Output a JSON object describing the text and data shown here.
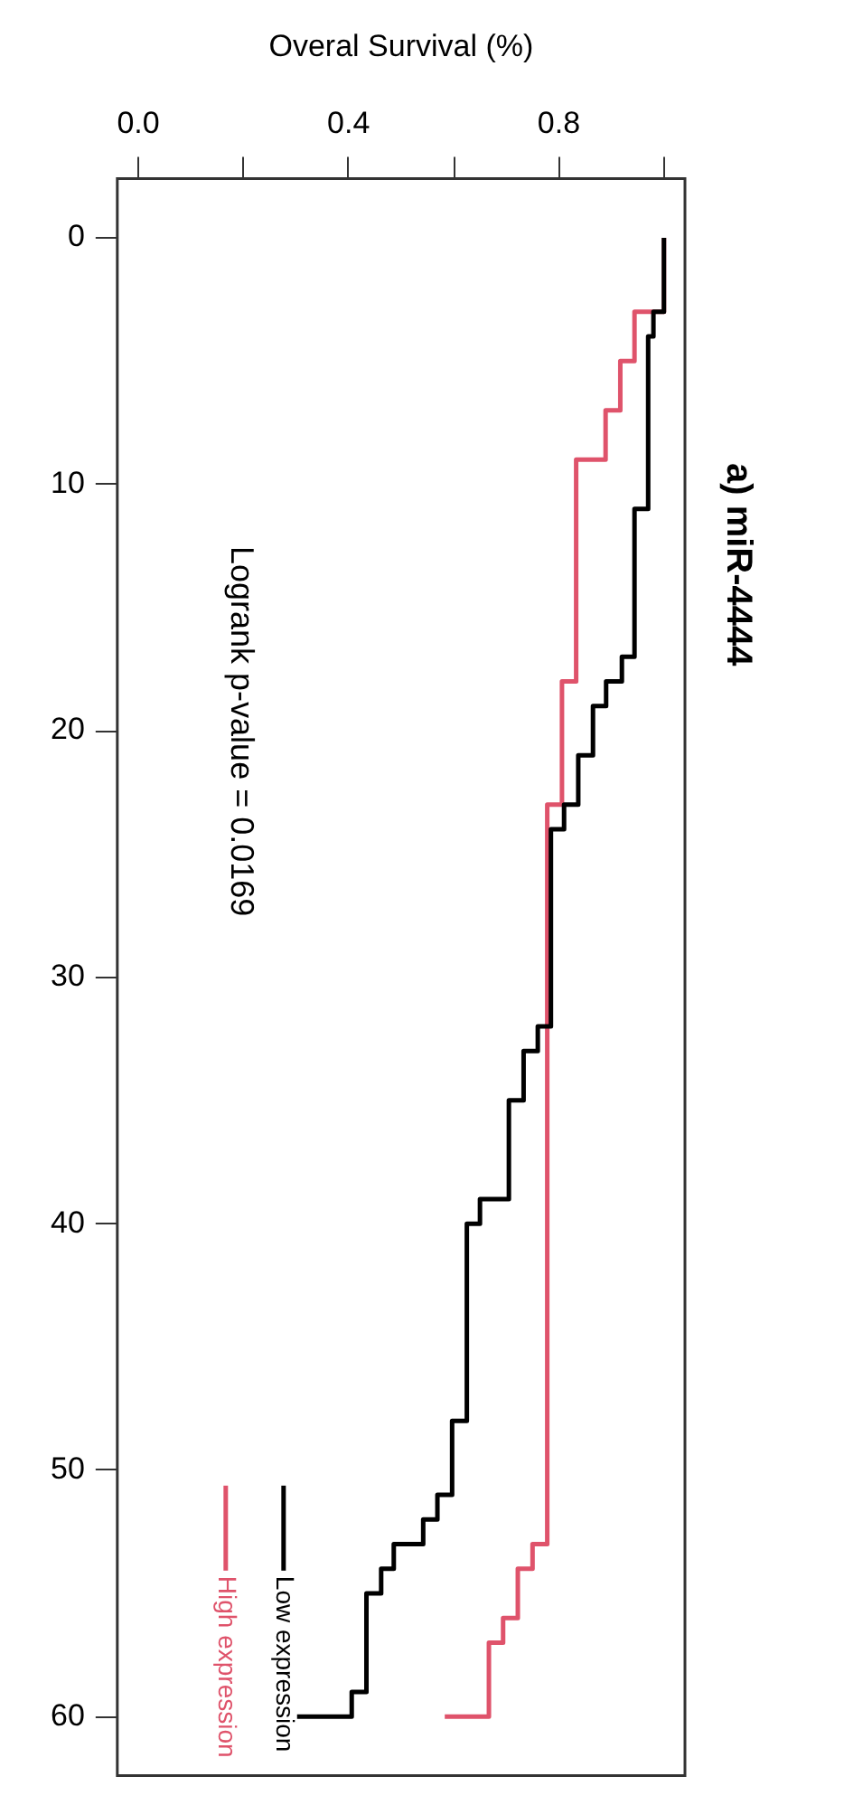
{
  "chart_data": {
    "type": "step",
    "orientation": "horizontal",
    "title": "a) miR-4444",
    "xlabel": "Overal Survival (%)",
    "xlim": [
      -0.04,
      1.04
    ],
    "xticks": [
      {
        "value": 0,
        "label": "0.0"
      },
      {
        "value": 0.2,
        "label": null
      },
      0.4,
      {
        "value": 0.6,
        "label": null
      },
      0.8,
      {
        "value": 1.0,
        "label": null
      }
    ],
    "ylim": [
      62.4,
      -2.4
    ],
    "yticks": [
      0,
      10,
      20,
      30,
      40,
      50,
      60
    ],
    "grid": false,
    "legend": "bottom left",
    "marker": "none",
    "line_style": "solid",
    "annotations": [
      "Logrank p-value = 0.0169"
    ],
    "series": [
      {
        "name": "Low expression",
        "color": "#000000",
        "x": [
          0,
          3,
          4,
          11,
          17,
          18,
          19,
          21,
          23,
          24,
          32,
          33,
          35,
          39,
          40,
          48,
          51,
          52,
          53,
          54,
          55,
          59,
          60,
          60
        ],
        "values": [
          1,
          0.98,
          0.97,
          0.944,
          0.92,
          0.89,
          0.865,
          0.837,
          0.81,
          0.785,
          0.76,
          0.733,
          0.705,
          0.65,
          0.625,
          0.597,
          0.569,
          0.542,
          0.486,
          0.462,
          0.434,
          0.406,
          0.406,
          0.302
        ]
      },
      {
        "name": "High expression",
        "color": "#df536b",
        "x": [
          0,
          3,
          5,
          7,
          9,
          18,
          23,
          53,
          54,
          56,
          57,
          60,
          60
        ],
        "values": [
          1,
          0.944,
          0.917,
          0.889,
          0.833,
          0.806,
          0.778,
          0.75,
          0.722,
          0.694,
          0.667,
          0.667,
          0.583
        ]
      }
    ]
  }
}
